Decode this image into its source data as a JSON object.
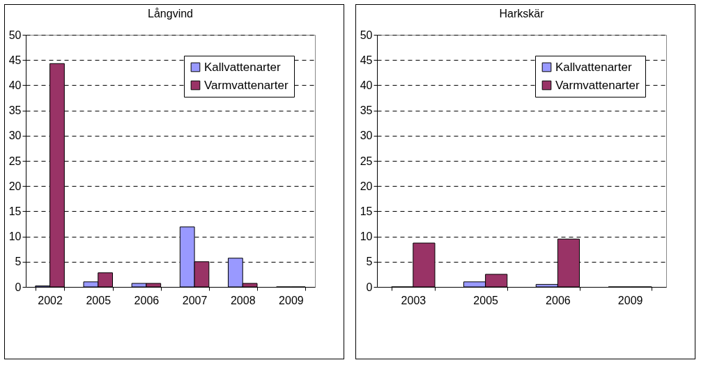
{
  "chart_data": [
    {
      "type": "bar",
      "title": "Långvind",
      "categories": [
        "2002",
        "2005",
        "2006",
        "2007",
        "2008",
        "2009"
      ],
      "series": [
        {
          "name": "Kallvattenarter",
          "color": "#9999ff",
          "values": [
            0.2,
            1.0,
            0.7,
            11.9,
            5.7,
            0
          ]
        },
        {
          "name": "Varmvattenarter",
          "color": "#993366",
          "values": [
            44.3,
            2.8,
            0.7,
            5.0,
            0.7,
            0
          ]
        }
      ],
      "ylim": [
        0,
        50
      ],
      "yticks": [
        0,
        5,
        10,
        15,
        20,
        25,
        30,
        35,
        40,
        45,
        50
      ],
      "grid": "y",
      "legend": "top right"
    },
    {
      "type": "bar",
      "title": "Harkskär",
      "categories": [
        "2003",
        "2005",
        "2006",
        "2009"
      ],
      "series": [
        {
          "name": "Kallvattenarter",
          "color": "#9999ff",
          "values": [
            0,
            1.0,
            0.5,
            0
          ]
        },
        {
          "name": "Varmvattenarter",
          "color": "#993366",
          "values": [
            8.7,
            2.5,
            9.5,
            0
          ]
        }
      ],
      "ylim": [
        0,
        50
      ],
      "yticks": [
        0,
        5,
        10,
        15,
        20,
        25,
        30,
        35,
        40,
        45,
        50
      ],
      "grid": "y",
      "legend": "top right"
    }
  ]
}
